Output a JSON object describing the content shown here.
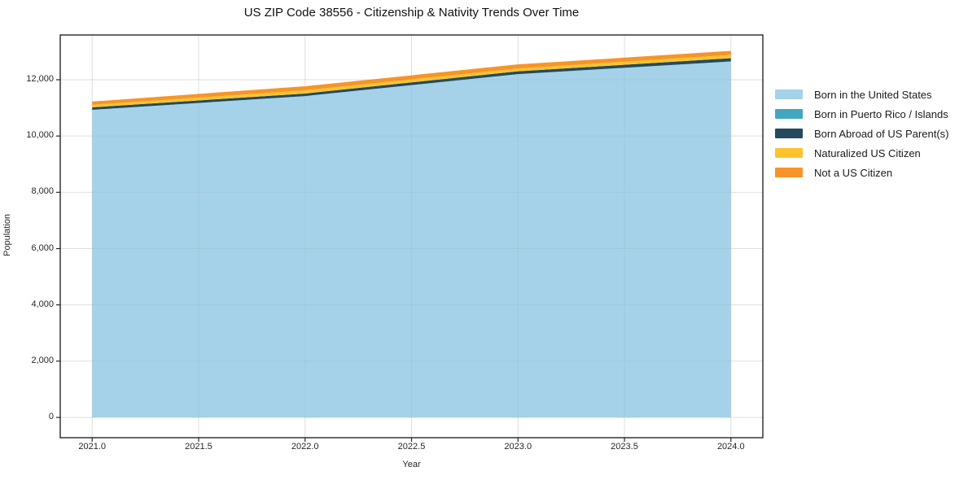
{
  "title": "US ZIP Code 38556 - Citizenship & Nativity Trends Over Time",
  "axes": {
    "xlabel": "Year",
    "ylabel": "Population",
    "xticks": [
      {
        "value": 2021.0,
        "label": "2021.0"
      },
      {
        "value": 2021.5,
        "label": "2021.5"
      },
      {
        "value": 2022.0,
        "label": "2022.0"
      },
      {
        "value": 2022.5,
        "label": "2022.5"
      },
      {
        "value": 2023.0,
        "label": "2023.0"
      },
      {
        "value": 2023.5,
        "label": "2023.5"
      },
      {
        "value": 2024.0,
        "label": "2024.0"
      }
    ],
    "yticks": [
      {
        "value": 0,
        "label": "0"
      },
      {
        "value": 2000,
        "label": "2,000"
      },
      {
        "value": 4000,
        "label": "4,000"
      },
      {
        "value": 6000,
        "label": "6,000"
      },
      {
        "value": 8000,
        "label": "8,000"
      },
      {
        "value": 10000,
        "label": "10,000"
      },
      {
        "value": 12000,
        "label": "12,000"
      }
    ]
  },
  "colors": {
    "spine": "#262626",
    "grid": "#ececec",
    "text": "#262626"
  },
  "chart_data": {
    "type": "area",
    "stacked": true,
    "title": "US ZIP Code 38556 - Citizenship & Nativity Trends Over Time",
    "xlabel": "Year",
    "ylabel": "Population",
    "x": [
      2021,
      2022,
      2023,
      2024
    ],
    "series": [
      {
        "name": "Born in the United States",
        "color": "#a5d2e8",
        "values": [
          10930,
          11420,
          12200,
          12650
        ]
      },
      {
        "name": "Born in Puerto Rico / Islands",
        "color": "#44a5c1",
        "values": [
          0,
          0,
          0,
          0
        ]
      },
      {
        "name": "Born Abroad of US Parent(s)",
        "color": "#234a5e",
        "values": [
          90,
          90,
          100,
          115
        ]
      },
      {
        "name": "Naturalized US Citizen",
        "color": "#fdc32f",
        "values": [
          90,
          115,
          100,
          115
        ]
      },
      {
        "name": "Not a US Citizen",
        "color": "#f79428",
        "values": [
          115,
          145,
          145,
          145
        ]
      }
    ],
    "totals": [
      11225,
      11770,
      12545,
      13025
    ],
    "xlim": [
      2020.85,
      2024.15
    ],
    "ylim": [
      -720,
      13590
    ],
    "grid": true,
    "legend_position": "right-outside"
  }
}
